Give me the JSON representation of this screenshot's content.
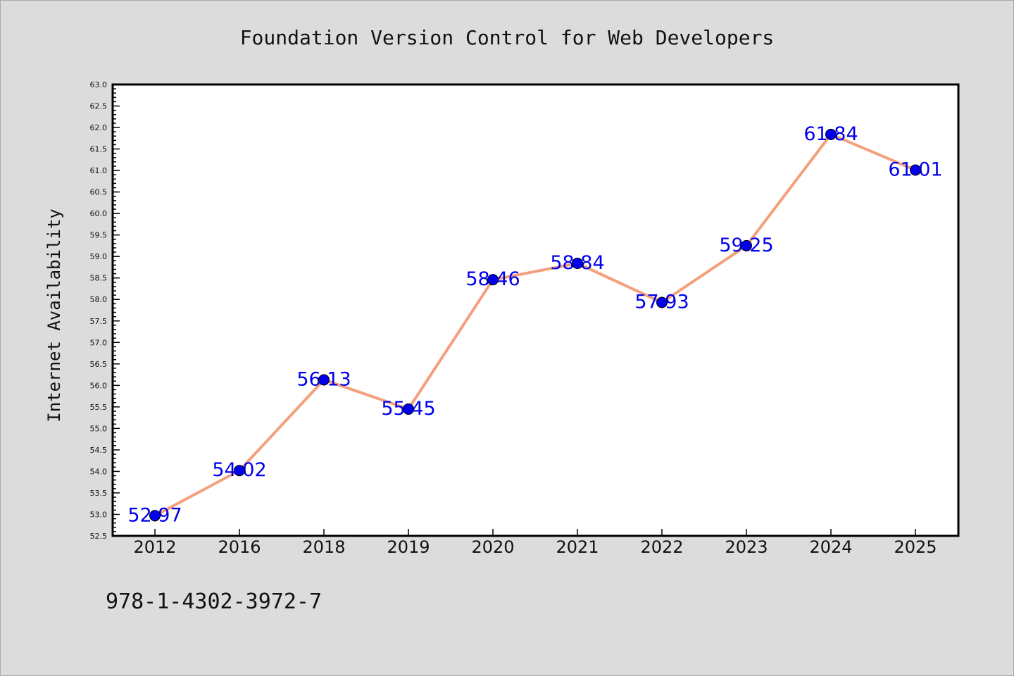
{
  "chart_data": {
    "type": "line",
    "title": "Foundation Version Control for Web Developers",
    "ylabel": "Internet Availability",
    "xlabel": "",
    "categories": [
      "2012",
      "2016",
      "2018",
      "2019",
      "2020",
      "2021",
      "2022",
      "2023",
      "2024",
      "2025"
    ],
    "series": [
      {
        "values": [
          52.97,
          54.02,
          56.13,
          55.45,
          58.46,
          58.84,
          57.93,
          59.25,
          61.84,
          61.01
        ],
        "data_labels": [
          "52.97",
          "54.02",
          "56.13",
          "55.45",
          "58.46",
          "58.84",
          "57.93",
          "59.25",
          "61.84",
          "61.01"
        ],
        "line_color": "#f4a07c",
        "marker_color": "#0000ee"
      }
    ],
    "ylim": [
      52.5,
      63.0
    ],
    "yticks": [
      "52.5",
      "53.0",
      "53.5",
      "54.0",
      "54.5",
      "55.0",
      "55.5",
      "56.0",
      "56.5",
      "57.0",
      "57.5",
      "58.0",
      "58.5",
      "59.0",
      "59.5",
      "60.0",
      "60.5",
      "61.0",
      "61.5",
      "62.0",
      "62.5",
      "63.0"
    ],
    "grid": false,
    "legend": "none"
  },
  "footer": {
    "isbn": "978-1-4302-3972-7"
  },
  "colors": {
    "background": "#dcdcdc",
    "plot_background": "#ffffff",
    "label_color": "#0000ee",
    "text": "#111111"
  }
}
